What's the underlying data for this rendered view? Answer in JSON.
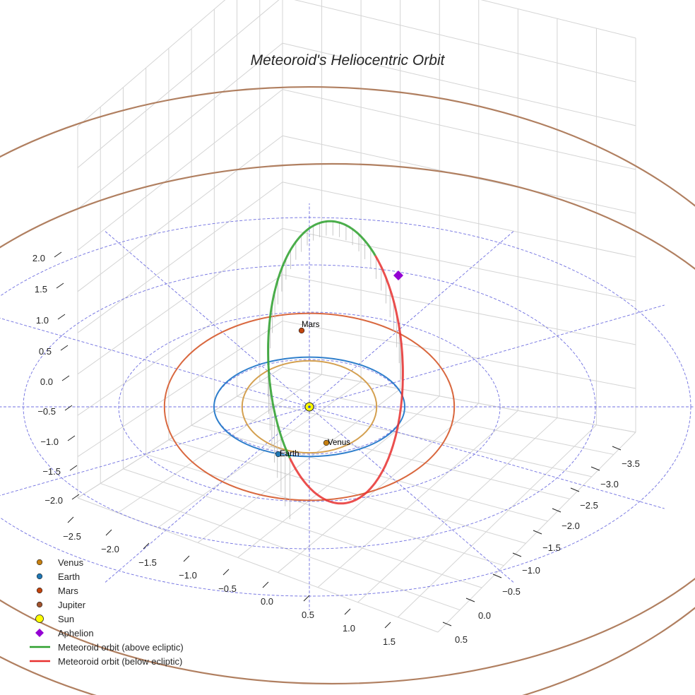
{
  "chart_data": {
    "type": "scatter3d",
    "title": "Meteoroid's Heliocentric Orbit",
    "axes": {
      "x": {
        "ticks": [
          "−2.5",
          "−2.0",
          "−1.5",
          "−1.0",
          "−0.5",
          "0.0",
          "0.5",
          "1.0",
          "1.5"
        ],
        "range": [
          -2.7,
          1.7
        ]
      },
      "y": {
        "ticks": [
          "−3.5",
          "−3.0",
          "−2.5",
          "−2.0",
          "−1.5",
          "−1.0",
          "−0.5",
          "0.0",
          "0.5"
        ],
        "range": [
          -3.7,
          0.7
        ]
      },
      "z": {
        "ticks": [
          "2.0",
          "1.5",
          "1.0",
          "0.5",
          "0.0",
          "−0.5",
          "−1.0",
          "−1.5",
          "−2.0"
        ],
        "range": [
          -2.2,
          2.2
        ]
      }
    },
    "grid": true,
    "reference_circles_au": [
      1,
      2,
      3,
      4
    ],
    "planets": [
      {
        "name": "Venus",
        "label": "Venus",
        "orbit_radius_au": 0.72,
        "color": "#c57f11",
        "orbit_color": "#d4a050"
      },
      {
        "name": "Earth",
        "label": "Earth",
        "orbit_radius_au": 1.0,
        "color": "#1f77b4",
        "orbit_color": "#2f7fcc"
      },
      {
        "name": "Mars",
        "label": "Mars",
        "orbit_radius_au": 1.52,
        "color": "#c1440e",
        "orbit_color": "#d9683f"
      },
      {
        "name": "Jupiter",
        "label": "Jupiter",
        "orbit_radius_au": 5.2,
        "color": "#a0522d",
        "orbit_color": "#b07f60"
      }
    ],
    "sun": {
      "name": "Sun",
      "color": "#ffff00"
    },
    "aphelion": {
      "name": "Aphelion",
      "color": "#9400d3"
    },
    "meteoroid_orbit": {
      "above": {
        "name": "Meteoroid orbit (above ecliptic)",
        "color": "#2ca02c"
      },
      "below": {
        "name": "Meteoroid orbit (below ecliptic)",
        "color": "#e8302f"
      }
    },
    "legend": {
      "placement": "lower-left",
      "entries": [
        {
          "label": "Venus",
          "symbol": "dot",
          "color": "#c57f11"
        },
        {
          "label": "Earth",
          "symbol": "dot",
          "color": "#1f77b4"
        },
        {
          "label": "Mars",
          "symbol": "dot",
          "color": "#c1440e"
        },
        {
          "label": "Jupiter",
          "symbol": "dot",
          "color": "#a0522d"
        },
        {
          "label": "Sun",
          "symbol": "bigdot",
          "color": "#ffff00"
        },
        {
          "label": "Aphelion",
          "symbol": "diamond",
          "color": "#9400d3"
        },
        {
          "label": "Meteoroid orbit (above ecliptic)",
          "symbol": "line",
          "color": "#2ca02c"
        },
        {
          "label": "Meteoroid orbit (below ecliptic)",
          "symbol": "line",
          "color": "#e8302f"
        }
      ]
    }
  }
}
